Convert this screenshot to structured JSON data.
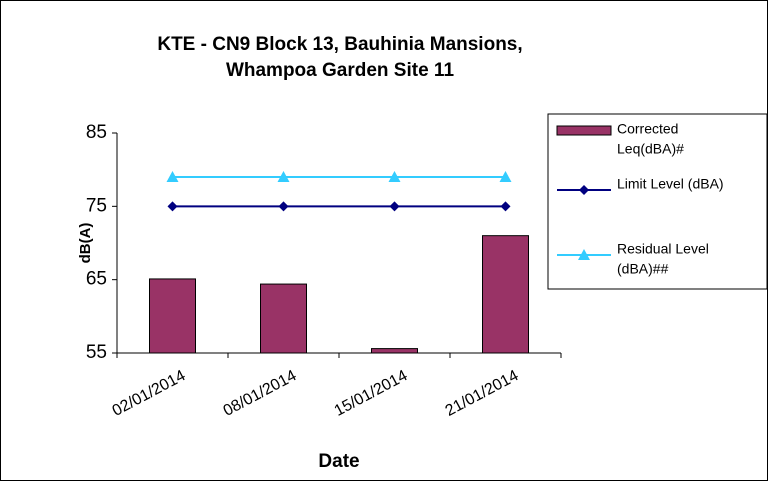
{
  "chart_data": {
    "type": "bar",
    "title": [
      "KTE - CN9 Block 13, Bauhinia Mansions,",
      "Whampoa Garden Site 11"
    ],
    "x_label": "Date",
    "y_label": "dB(A)",
    "categories": [
      "02/01/2014",
      "08/01/2014",
      "15/01/2014",
      "21/01/2014"
    ],
    "series": [
      {
        "name": [
          "Corrected",
          "Leq(dBA)#"
        ],
        "type": "bar",
        "color": "#993366",
        "values": [
          65.1,
          64.4,
          55.6,
          71.0
        ]
      },
      {
        "name": [
          "Limit Level (dBA)"
        ],
        "type": "line",
        "marker": "diamond",
        "color": "#000080",
        "values": [
          75,
          75,
          75,
          75
        ]
      },
      {
        "name": [
          "Residual Level",
          "(dBA)##"
        ],
        "type": "line",
        "marker": "triangle",
        "color": "#33ccff",
        "values": [
          79,
          79,
          79,
          79
        ]
      }
    ],
    "ylim": [
      55,
      85
    ],
    "yticks": [
      55,
      65,
      75,
      85
    ],
    "grid": false,
    "legend": "right"
  }
}
